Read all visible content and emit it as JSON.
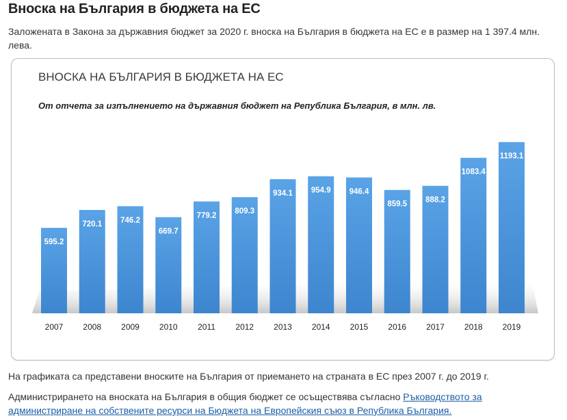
{
  "page": {
    "heading": "Вноска на България в бюджета на ЕС",
    "intro": "Заложената в Закона за държавния бюджет за 2020 г. вноска на България в бюджета на ЕС е в размер на 1 397.4 млн. лева.",
    "paragraph1": "На графиката са представени вноските на България от приемането на страната в ЕС през 2007 г. до 2019 г.",
    "paragraph2_text": "Администрирането на вноската на България в общия бюджет се осъществява съгласно ",
    "paragraph2_link": "Ръководството за администриране на собствените ресурси на Бюджета на Европейския съюз в Република България."
  },
  "chart_data": {
    "type": "bar",
    "title": "ВНОСКА НА БЪЛГАРИЯ В БЮДЖЕТА НА ЕС",
    "subtitle": "От отчета за изпълнението на държавния бюджет на Република България, в млн. лв.",
    "categories": [
      "2007",
      "2008",
      "2009",
      "2010",
      "2011",
      "2012",
      "2013",
      "2014",
      "2015",
      "2016",
      "2017",
      "2018",
      "2019"
    ],
    "values": [
      595.2,
      720.1,
      746.2,
      669.7,
      779.2,
      809.3,
      934.1,
      954.9,
      946.4,
      859.5,
      888.2,
      1083.4,
      1193.1
    ],
    "value_labels": [
      "595.2",
      "720.1",
      "746.2",
      "669.7",
      "779.2",
      "809.3",
      "934.1",
      "954.9",
      "946.4",
      "859.5",
      "888.2",
      "1083.4",
      "1193.1"
    ],
    "ylim": [
      0,
      1200
    ],
    "grid": false,
    "bar_color": "#4a93d8"
  }
}
